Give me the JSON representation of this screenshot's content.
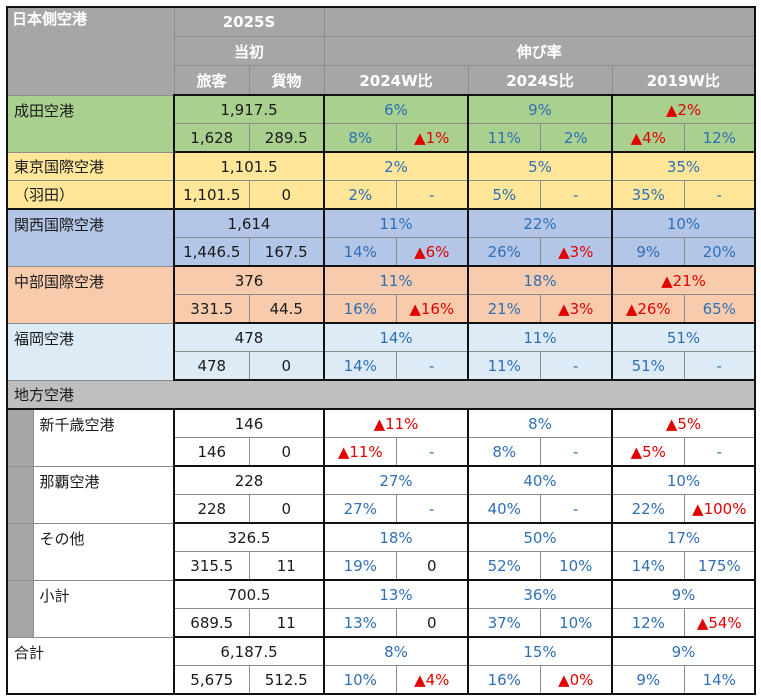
{
  "header": {
    "title": "日本側空港",
    "season": "2025S",
    "initial": "当初",
    "growth": "伸び率",
    "passenger": "旅客",
    "cargo": "貨物",
    "vs_2024w": "2024W比",
    "vs_2024s": "2024S比",
    "vs_2019w": "2019W比"
  },
  "colors": {
    "header_gray": "#a6a6a6",
    "narita_green": "#a9d08e",
    "haneda_yellow": "#ffe699",
    "kansai_blue": "#b4c6e7",
    "chubu_orange": "#f8cbad",
    "fukuoka_lightblue": "#ddebf7",
    "positive_blue": "#2f6fb6",
    "negative_red": "#e00000"
  },
  "major": [
    {
      "name": "成田空港",
      "name2": "",
      "total": "1,917.5",
      "passenger": "1,628",
      "cargo": "289.5",
      "w24": "6%",
      "w24_p": "8%",
      "w24_c": "▲1%",
      "s24": "9%",
      "s24_p": "11%",
      "s24_c": "2%",
      "w19": "▲2%",
      "w19_p": "▲4%",
      "w19_c": "12%"
    },
    {
      "name": "東京国際空港",
      "name2": "（羽田）",
      "total": "1,101.5",
      "passenger": "1,101.5",
      "cargo": "0",
      "w24": "2%",
      "w24_p": "2%",
      "w24_c": "-",
      "s24": "5%",
      "s24_p": "5%",
      "s24_c": "-",
      "w19": "35%",
      "w19_p": "35%",
      "w19_c": "-"
    },
    {
      "name": "関西国際空港",
      "name2": "",
      "total": "1,614",
      "passenger": "1,446.5",
      "cargo": "167.5",
      "w24": "11%",
      "w24_p": "14%",
      "w24_c": "▲6%",
      "s24": "22%",
      "s24_p": "26%",
      "s24_c": "▲3%",
      "w19": "10%",
      "w19_p": "9%",
      "w19_c": "20%"
    },
    {
      "name": "中部国際空港",
      "name2": "",
      "total": "376",
      "passenger": "331.5",
      "cargo": "44.5",
      "w24": "11%",
      "w24_p": "16%",
      "w24_c": "▲16%",
      "s24": "18%",
      "s24_p": "21%",
      "s24_c": "▲3%",
      "w19": "▲21%",
      "w19_p": "▲26%",
      "w19_c": "65%"
    },
    {
      "name": "福岡空港",
      "name2": "",
      "total": "478",
      "passenger": "478",
      "cargo": "0",
      "w24": "14%",
      "w24_p": "14%",
      "w24_c": "-",
      "s24": "11%",
      "s24_p": "11%",
      "s24_c": "-",
      "w19": "51%",
      "w19_p": "51%",
      "w19_c": "-"
    }
  ],
  "regional_title": "地方空港",
  "regional": [
    {
      "name": "新千歳空港",
      "total": "146",
      "passenger": "146",
      "cargo": "0",
      "w24": "▲11%",
      "w24_p": "▲11%",
      "w24_c": "-",
      "s24": "8%",
      "s24_p": "8%",
      "s24_c": "-",
      "w19": "▲5%",
      "w19_p": "▲5%",
      "w19_c": "-"
    },
    {
      "name": "那覇空港",
      "total": "228",
      "passenger": "228",
      "cargo": "0",
      "w24": "27%",
      "w24_p": "27%",
      "w24_c": "-",
      "s24": "40%",
      "s24_p": "40%",
      "s24_c": "-",
      "w19": "10%",
      "w19_p": "22%",
      "w19_c": "▲100%"
    },
    {
      "name": "その他",
      "total": "326.5",
      "passenger": "315.5",
      "cargo": "11",
      "w24": "18%",
      "w24_p": "19%",
      "w24_c": "0",
      "s24": "50%",
      "s24_p": "52%",
      "s24_c": "10%",
      "w19": "17%",
      "w19_p": "14%",
      "w19_c": "175%"
    },
    {
      "name": "小計",
      "total": "700.5",
      "passenger": "689.5",
      "cargo": "11",
      "w24": "13%",
      "w24_p": "13%",
      "w24_c": "0",
      "s24": "36%",
      "s24_p": "37%",
      "s24_c": "10%",
      "w19": "9%",
      "w19_p": "12%",
      "w19_c": "▲54%"
    }
  ],
  "total": {
    "name": "合計",
    "total": "6,187.5",
    "passenger": "5,675",
    "cargo": "512.5",
    "w24": "8%",
    "w24_p": "10%",
    "w24_c": "▲4%",
    "s24": "15%",
    "s24_p": "16%",
    "s24_c": "▲0%",
    "w19": "9%",
    "w19_p": "9%",
    "w19_c": "14%"
  }
}
